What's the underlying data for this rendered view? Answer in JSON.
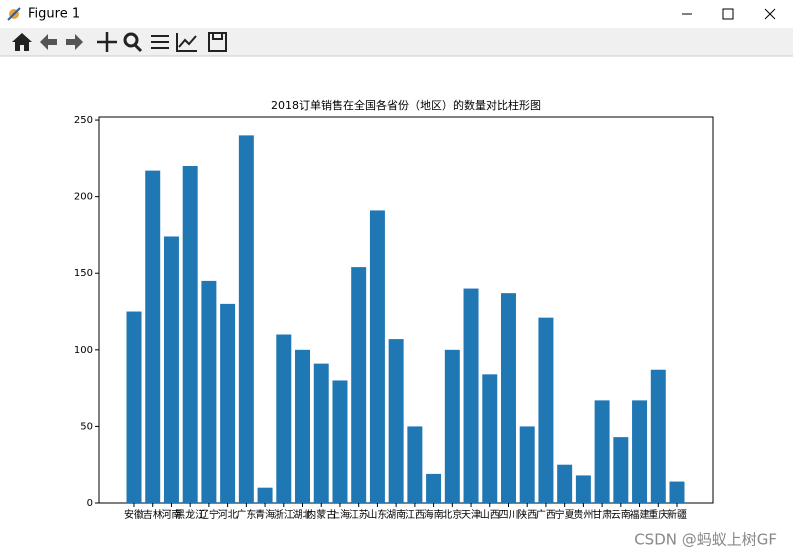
{
  "window": {
    "title": "Figure 1"
  },
  "watermark": "CSDN @蚂蚁上树GF",
  "chart_data": {
    "type": "bar",
    "title": "2018订单销售在全国各省份（地区）的数量对比柱形图",
    "categories": [
      "安徽",
      "吉林",
      "河南",
      "黑龙江",
      "辽宁",
      "河北",
      "广东",
      "青海",
      "浙江",
      "湖北",
      "内蒙古",
      "上海",
      "江苏",
      "山东",
      "湖南",
      "江西",
      "海南",
      "北京",
      "天津",
      "山西",
      "四川",
      "陕西",
      "广西",
      "宁夏",
      "贵州",
      "甘肃",
      "云南",
      "福建",
      "重庆",
      "新疆"
    ],
    "values": [
      125,
      217,
      174,
      220,
      145,
      130,
      240,
      10,
      110,
      100,
      91,
      80,
      154,
      191,
      107,
      50,
      19,
      100,
      140,
      84,
      137,
      50,
      121,
      25,
      18,
      67,
      43,
      67,
      87,
      14
    ],
    "color": "#1f77b4",
    "ylim": [
      0,
      252
    ],
    "yticks": [
      0,
      50,
      100,
      150,
      200,
      250
    ]
  }
}
